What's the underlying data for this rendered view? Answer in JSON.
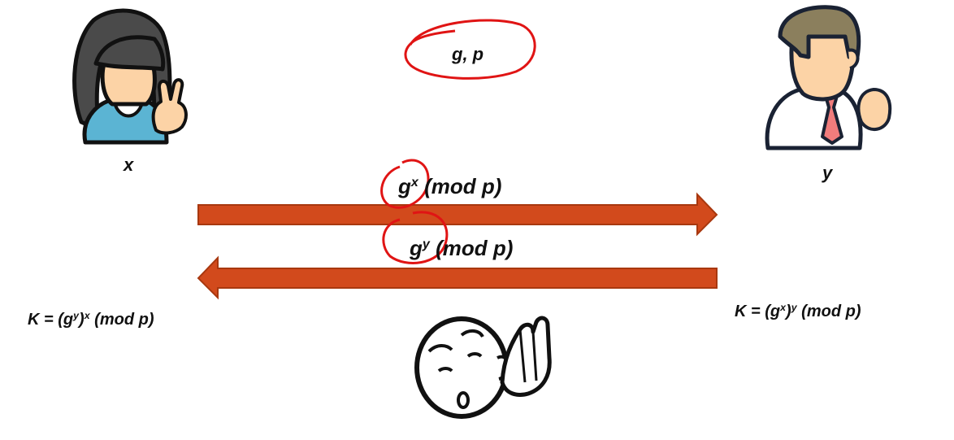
{
  "public_params": "g, p",
  "alice": {
    "label": "x"
  },
  "bob": {
    "label": "y"
  },
  "msg_to_bob": {
    "base": "g",
    "exp": "x",
    "rest": " (mod p)"
  },
  "msg_to_alice": {
    "base": "g",
    "exp": "y",
    "rest": " (mod p)"
  },
  "alice_key": {
    "prefix": "K = (g",
    "inner_exp": "y",
    "mid": ")",
    "outer_exp": "x",
    "suffix": " (mod p)"
  },
  "bob_key": {
    "prefix": "K = (g",
    "inner_exp": "x",
    "mid": ")",
    "outer_exp": "y",
    "suffix": " (mod p)"
  },
  "colors": {
    "arrow": "#d24a1c",
    "circle": "#e01414",
    "alice_shirt": "#5bb4d3",
    "bob_tie": "#f07c7c",
    "bob_hair": "#8b7f5d"
  }
}
